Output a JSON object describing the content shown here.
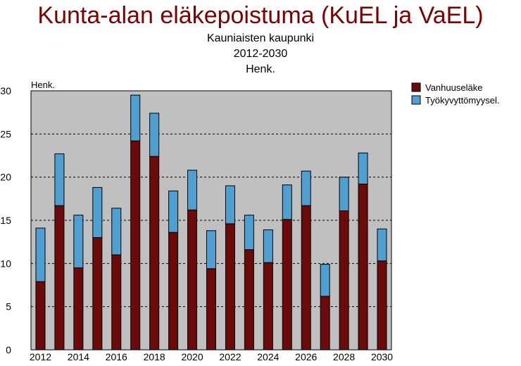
{
  "chart_data": {
    "type": "bar",
    "stacked": true,
    "title": "Kunta-alan eläkepoistuma (KuEL ja VaEL)",
    "subtitle_lines": [
      "Kauniaisten kaupunki",
      "2012-2030",
      "Henk."
    ],
    "ylabel": "Henk.",
    "xlabel": "",
    "ylim": [
      0,
      30
    ],
    "yticks": [
      0,
      5,
      10,
      15,
      20,
      25,
      30
    ],
    "grid": "horizontal dashed",
    "legend_position": "top-right",
    "background_color": "#c0c0c0",
    "categories": [
      "2012",
      "2013",
      "2014",
      "2015",
      "2016",
      "2017",
      "2018",
      "2019",
      "2020",
      "2021",
      "2022",
      "2023",
      "2024",
      "2025",
      "2026",
      "2027",
      "2028",
      "2029",
      "2030"
    ],
    "xtick_labels": [
      "2012",
      "2014",
      "2016",
      "2018",
      "2020",
      "2022",
      "2024",
      "2026",
      "2028",
      "2030"
    ],
    "series": [
      {
        "name": "Vanhuuseläke",
        "color": "#6b0a0a",
        "values": [
          7.9,
          16.7,
          9.5,
          13.0,
          11.0,
          24.2,
          22.4,
          13.6,
          16.2,
          9.4,
          14.6,
          11.6,
          10.1,
          15.1,
          16.7,
          6.2,
          16.1,
          19.2,
          10.3
        ]
      },
      {
        "name": "Työkyvyttömyysel.",
        "color": "#4f9fd0",
        "values": [
          6.2,
          6.0,
          6.1,
          5.8,
          5.4,
          5.3,
          5.0,
          4.8,
          4.6,
          4.4,
          4.4,
          4.0,
          3.8,
          4.0,
          4.0,
          3.7,
          3.9,
          3.6,
          3.7
        ]
      }
    ]
  }
}
